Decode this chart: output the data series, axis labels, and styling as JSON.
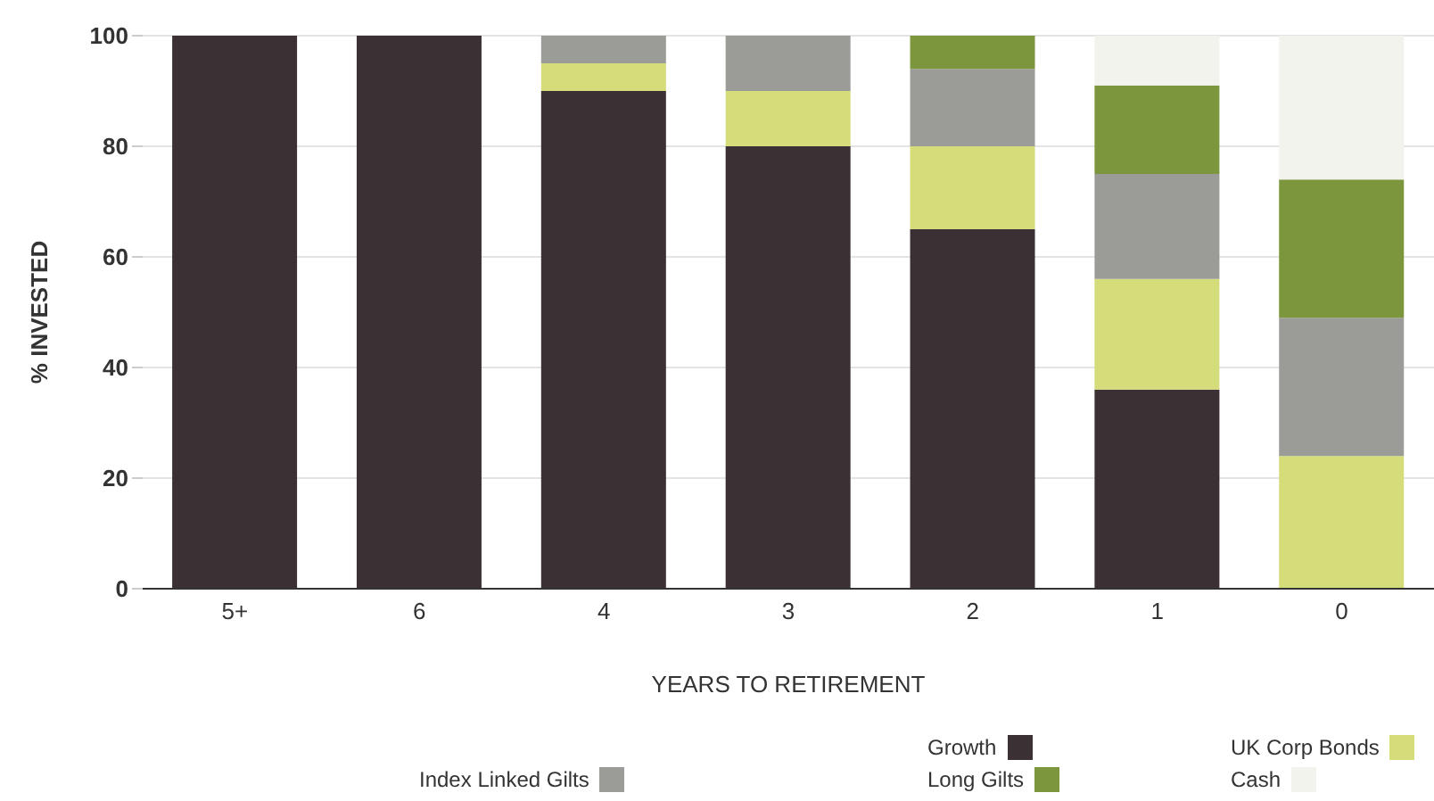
{
  "chart_data": {
    "type": "bar",
    "stacked": true,
    "xlabel": "YEARS TO RETIREMENT",
    "ylabel": "% INVESTED",
    "categories": [
      "5+",
      "6",
      "4",
      "3",
      "2",
      "1",
      "0"
    ],
    "series": [
      {
        "name": "Growth",
        "color": "#3b3034",
        "values": [
          100,
          100,
          90,
          80,
          65,
          36,
          0
        ]
      },
      {
        "name": "UK Corp Bonds",
        "color": "#d5dc7a",
        "values": [
          0,
          0,
          5,
          10,
          15,
          20,
          24
        ]
      },
      {
        "name": "Index Linked Gilts",
        "color": "#9b9c98",
        "values": [
          0,
          0,
          5,
          10,
          14,
          19,
          25
        ]
      },
      {
        "name": "Long Gilts",
        "color": "#7b963c",
        "values": [
          0,
          0,
          0,
          0,
          6,
          16,
          25
        ]
      },
      {
        "name": "Cash",
        "color": "#f3f3ee",
        "values": [
          0,
          0,
          0,
          0,
          0,
          9,
          26
        ]
      }
    ],
    "ylim": [
      0,
      100
    ],
    "yticks": [
      0,
      20,
      40,
      60,
      80,
      100
    ],
    "grid": "y",
    "legend": "bottom"
  }
}
